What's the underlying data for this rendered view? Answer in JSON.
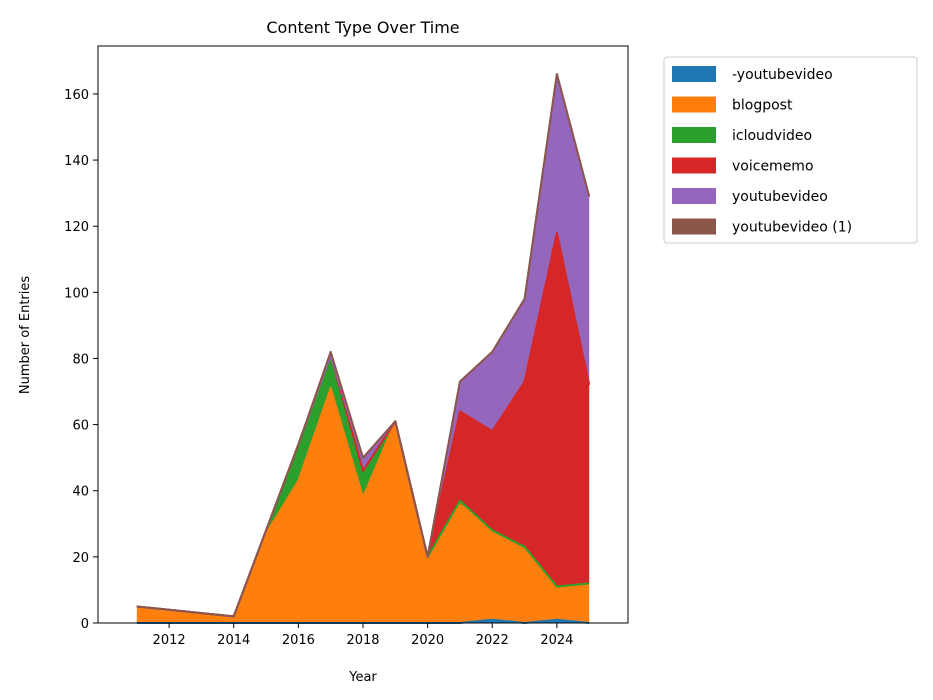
{
  "chart_data": {
    "type": "area",
    "stacked": true,
    "title": "Content Type Over Time",
    "xlabel": "Year",
    "ylabel": "Number of Entries",
    "x": [
      2011,
      2012,
      2013,
      2014,
      2015,
      2016,
      2017,
      2018,
      2019,
      2020,
      2021,
      2022,
      2023,
      2024,
      2025
    ],
    "xlim": [
      2009.8,
      2026.2
    ],
    "ylim": [
      0,
      174.5
    ],
    "xticks": [
      2012,
      2014,
      2016,
      2018,
      2020,
      2022,
      2024
    ],
    "yticks": [
      0,
      20,
      40,
      60,
      80,
      100,
      120,
      140,
      160
    ],
    "grid": false,
    "legend_position": "outside-upper-right",
    "series": [
      {
        "name": "-youtubevideo",
        "color": "#1f77b4",
        "values": [
          0,
          0,
          0,
          0,
          0,
          0,
          0,
          0,
          0,
          0,
          0,
          1,
          0,
          1,
          0
        ]
      },
      {
        "name": "blogpost",
        "color": "#ff7f0e",
        "values": [
          5,
          4,
          3,
          2,
          27,
          43,
          71,
          38,
          61,
          20,
          36,
          27,
          23,
          10,
          12
        ]
      },
      {
        "name": "icloudvideo",
        "color": "#2ca02c",
        "values": [
          0,
          0,
          0,
          0,
          1,
          11,
          10,
          8,
          0,
          0,
          1,
          0,
          0,
          0,
          0
        ]
      },
      {
        "name": "voicememo",
        "color": "#d62728",
        "values": [
          0,
          0,
          0,
          0,
          0,
          0,
          0,
          0,
          0,
          0,
          27,
          30,
          50,
          107,
          60
        ]
      },
      {
        "name": "youtubevideo",
        "color": "#9467bd",
        "values": [
          0,
          0,
          0,
          0,
          0,
          0,
          0,
          3,
          0,
          0,
          9,
          24,
          25,
          48,
          57
        ]
      },
      {
        "name": "youtubevideo (1)",
        "color": "#8c564b",
        "values": [
          0,
          0,
          0,
          0,
          0,
          0,
          1,
          1,
          0,
          0,
          0,
          0,
          0,
          0,
          0
        ]
      }
    ]
  }
}
